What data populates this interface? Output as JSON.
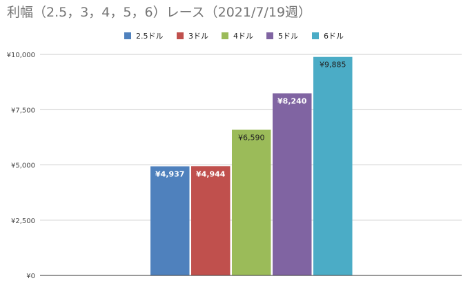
{
  "chart_data": {
    "type": "bar",
    "title": "利幅（2.5，3，4，5，6）レース（2021/7/19週）",
    "xlabel": "",
    "ylabel": "",
    "categories": [
      ""
    ],
    "series": [
      {
        "name": "2.5ドル",
        "color": "#4f81bd",
        "values": [
          4937
        ],
        "label": "¥4,937",
        "label_color": "#ffffff",
        "label_bold": true
      },
      {
        "name": "3ドル",
        "color": "#c0504d",
        "values": [
          4944
        ],
        "label": "¥4,944",
        "label_color": "#ffffff",
        "label_bold": true
      },
      {
        "name": "4ドル",
        "color": "#9bbb59",
        "values": [
          6590
        ],
        "label": "¥6,590",
        "label_color": "#222222",
        "label_bold": false
      },
      {
        "name": "5ドル",
        "color": "#8064a2",
        "values": [
          8240
        ],
        "label": "¥8,240",
        "label_color": "#ffffff",
        "label_bold": true
      },
      {
        "name": "6ドル",
        "color": "#4bacc6",
        "values": [
          9885
        ],
        "label": "¥9,885",
        "label_color": "#222222",
        "label_bold": false
      }
    ],
    "ylim": [
      0,
      10000
    ],
    "yticks": [
      0,
      2500,
      5000,
      7500,
      10000
    ],
    "ytick_labels": [
      "¥0",
      "¥2,500",
      "¥5,000",
      "¥7,500",
      "¥10,000"
    ],
    "grid": true,
    "legend_position": "top"
  }
}
